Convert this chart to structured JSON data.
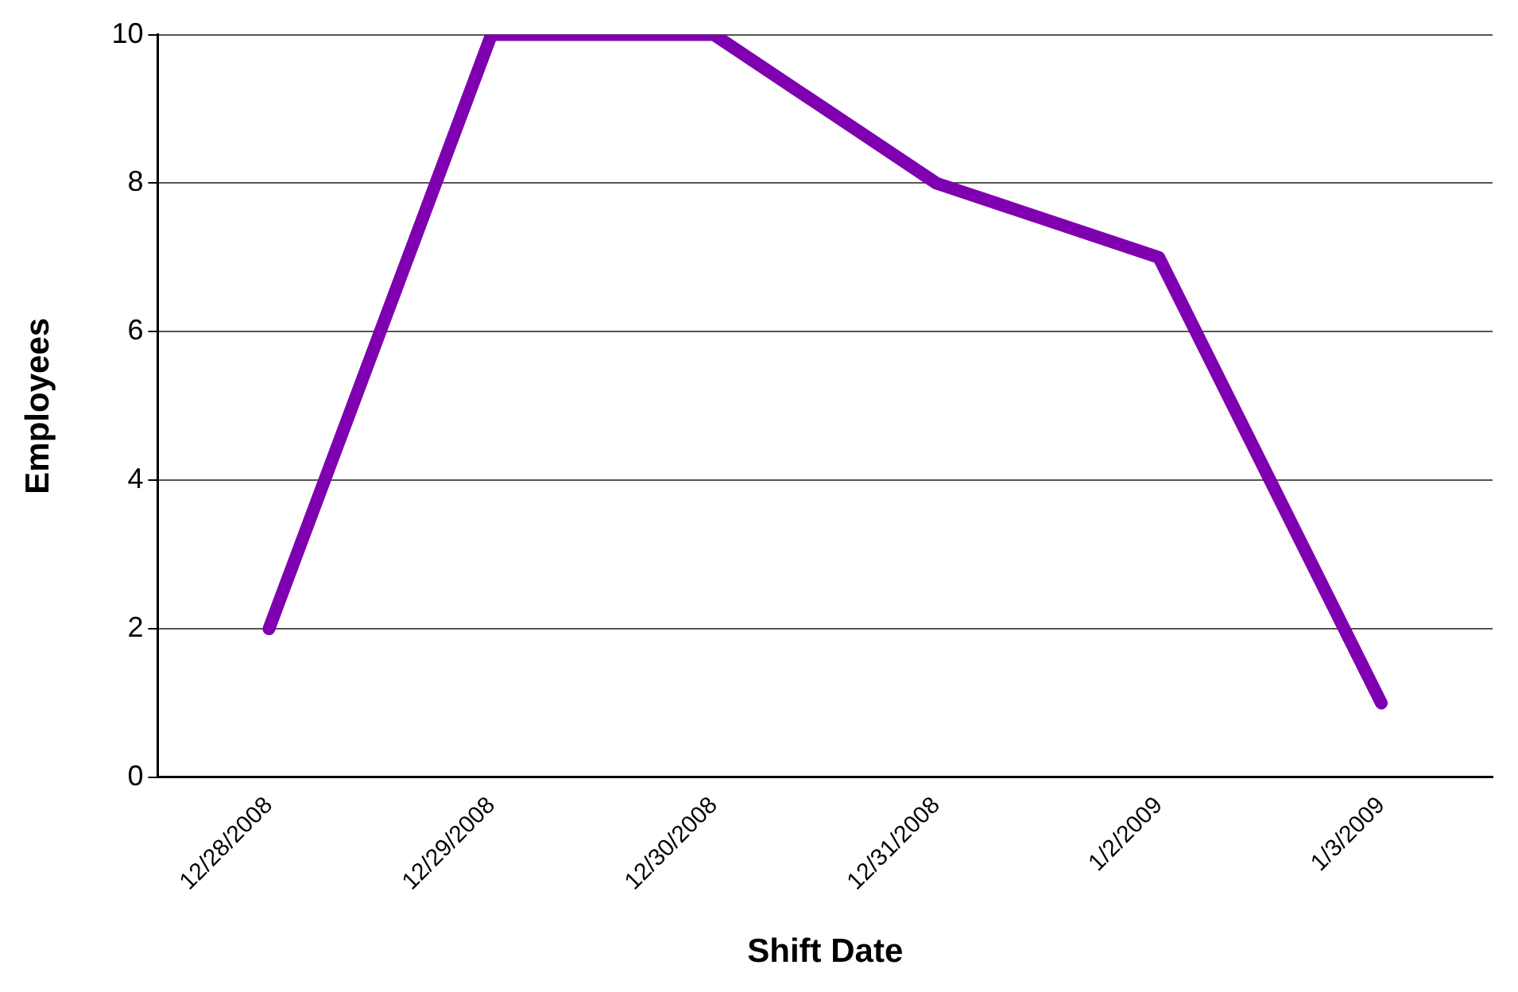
{
  "chart_data": {
    "type": "line",
    "xlabel": "Shift Date",
    "ylabel": "Employees",
    "categories": [
      "12/28/2008",
      "12/29/2008",
      "12/30/2008",
      "12/31/2008",
      "1/2/2009",
      "1/3/2009"
    ],
    "series": [
      {
        "color": "#7f00b0",
        "values": [
          2,
          10,
          10,
          8,
          7,
          1
        ]
      }
    ],
    "ylim": [
      0,
      10
    ],
    "yticks": [
      0,
      2,
      4,
      6,
      8,
      10
    ],
    "grid": "y",
    "legend": false,
    "marker": "none",
    "line_style": "solid"
  }
}
